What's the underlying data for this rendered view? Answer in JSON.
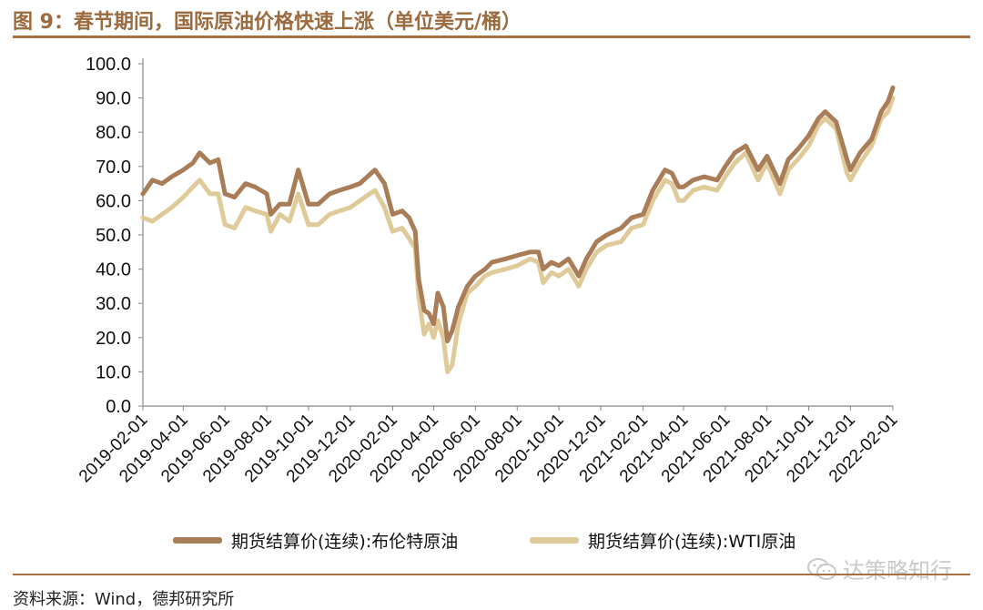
{
  "header": {
    "title": "图 9：春节期间，国际原油价格快速上涨（单位美元/桶）"
  },
  "footer": {
    "source": "资料来源：Wind，德邦研究所",
    "watermark": "达策略知行",
    "watermark_icon": "wechat-icon"
  },
  "colors": {
    "brent": "#a87d58",
    "wti": "#dfcb9a",
    "accent": "#a57140"
  },
  "chart_data": {
    "type": "line",
    "title": "",
    "xlabel": "",
    "ylabel": "",
    "ylim": [
      0,
      100
    ],
    "yticks": [
      "0.0",
      "10.0",
      "20.0",
      "30.0",
      "40.0",
      "50.0",
      "60.0",
      "70.0",
      "80.0",
      "90.0",
      "100.0"
    ],
    "xlim": [
      "2019-02-01",
      "2022-02-01"
    ],
    "xticks": [
      "2019-02-01",
      "2019-04-01",
      "2019-06-01",
      "2019-08-01",
      "2019-10-01",
      "2019-12-01",
      "2020-02-01",
      "2020-04-01",
      "2020-06-01",
      "2020-08-01",
      "2020-10-01",
      "2020-12-01",
      "2021-02-01",
      "2021-04-01",
      "2021-06-01",
      "2021-08-01",
      "2021-10-01",
      "2021-12-01",
      "2022-02-01"
    ],
    "grid": false,
    "legend_position": "bottom",
    "series": [
      {
        "name": "期货结算价(连续):布伦特原油",
        "points": [
          [
            "2019-02-01",
            62
          ],
          [
            "2019-02-15",
            66
          ],
          [
            "2019-03-01",
            65
          ],
          [
            "2019-03-15",
            67
          ],
          [
            "2019-04-01",
            69
          ],
          [
            "2019-04-15",
            71
          ],
          [
            "2019-04-25",
            74
          ],
          [
            "2019-05-10",
            71
          ],
          [
            "2019-05-22",
            72
          ],
          [
            "2019-06-01",
            62
          ],
          [
            "2019-06-15",
            61
          ],
          [
            "2019-07-01",
            65
          ],
          [
            "2019-07-15",
            64
          ],
          [
            "2019-08-01",
            62
          ],
          [
            "2019-08-07",
            56
          ],
          [
            "2019-08-20",
            59
          ],
          [
            "2019-09-03",
            59
          ],
          [
            "2019-09-16",
            69
          ],
          [
            "2019-10-01",
            59
          ],
          [
            "2019-10-15",
            59
          ],
          [
            "2019-11-01",
            62
          ],
          [
            "2019-11-15",
            63
          ],
          [
            "2019-12-01",
            64
          ],
          [
            "2019-12-15",
            65
          ],
          [
            "2020-01-06",
            69
          ],
          [
            "2020-01-20",
            65
          ],
          [
            "2020-02-01",
            56
          ],
          [
            "2020-02-15",
            57
          ],
          [
            "2020-02-25",
            55
          ],
          [
            "2020-03-05",
            51
          ],
          [
            "2020-03-10",
            37
          ],
          [
            "2020-03-18",
            28
          ],
          [
            "2020-03-25",
            27
          ],
          [
            "2020-04-01",
            24
          ],
          [
            "2020-04-07",
            33
          ],
          [
            "2020-04-15",
            29
          ],
          [
            "2020-04-21",
            19
          ],
          [
            "2020-04-28",
            22
          ],
          [
            "2020-05-07",
            29
          ],
          [
            "2020-05-20",
            35
          ],
          [
            "2020-06-01",
            38
          ],
          [
            "2020-06-15",
            40
          ],
          [
            "2020-06-25",
            42
          ],
          [
            "2020-07-15",
            43
          ],
          [
            "2020-08-01",
            44
          ],
          [
            "2020-08-20",
            45
          ],
          [
            "2020-09-01",
            45
          ],
          [
            "2020-09-08",
            40
          ],
          [
            "2020-09-20",
            42
          ],
          [
            "2020-10-01",
            41
          ],
          [
            "2020-10-15",
            43
          ],
          [
            "2020-10-30",
            38
          ],
          [
            "2020-11-10",
            43
          ],
          [
            "2020-11-25",
            48
          ],
          [
            "2020-12-10",
            50
          ],
          [
            "2020-12-31",
            52
          ],
          [
            "2021-01-15",
            55
          ],
          [
            "2021-02-01",
            56
          ],
          [
            "2021-02-15",
            63
          ],
          [
            "2021-03-05",
            69
          ],
          [
            "2021-03-15",
            68
          ],
          [
            "2021-03-25",
            64
          ],
          [
            "2021-04-01",
            64
          ],
          [
            "2021-04-15",
            66
          ],
          [
            "2021-05-01",
            67
          ],
          [
            "2021-05-20",
            66
          ],
          [
            "2021-06-01",
            70
          ],
          [
            "2021-06-15",
            74
          ],
          [
            "2021-07-01",
            76
          ],
          [
            "2021-07-19",
            69
          ],
          [
            "2021-08-01",
            73
          ],
          [
            "2021-08-20",
            65
          ],
          [
            "2021-09-01",
            72
          ],
          [
            "2021-09-15",
            75
          ],
          [
            "2021-10-01",
            79
          ],
          [
            "2021-10-15",
            84
          ],
          [
            "2021-10-25",
            86
          ],
          [
            "2021-11-10",
            83
          ],
          [
            "2021-11-26",
            72
          ],
          [
            "2021-12-01",
            69
          ],
          [
            "2021-12-15",
            74
          ],
          [
            "2022-01-01",
            78
          ],
          [
            "2022-01-15",
            86
          ],
          [
            "2022-01-25",
            89
          ],
          [
            "2022-02-01",
            93
          ]
        ]
      },
      {
        "name": "期货结算价(连续):WTI原油",
        "points": [
          [
            "2019-02-01",
            55
          ],
          [
            "2019-02-15",
            54
          ],
          [
            "2019-03-01",
            56
          ],
          [
            "2019-03-15",
            58
          ],
          [
            "2019-04-01",
            61
          ],
          [
            "2019-04-15",
            64
          ],
          [
            "2019-04-25",
            66
          ],
          [
            "2019-05-10",
            62
          ],
          [
            "2019-05-22",
            62
          ],
          [
            "2019-06-01",
            53
          ],
          [
            "2019-06-15",
            52
          ],
          [
            "2019-07-01",
            58
          ],
          [
            "2019-07-15",
            57
          ],
          [
            "2019-08-01",
            56
          ],
          [
            "2019-08-07",
            51
          ],
          [
            "2019-08-20",
            56
          ],
          [
            "2019-09-03",
            54
          ],
          [
            "2019-09-16",
            62
          ],
          [
            "2019-10-01",
            53
          ],
          [
            "2019-10-15",
            53
          ],
          [
            "2019-11-01",
            56
          ],
          [
            "2019-11-15",
            57
          ],
          [
            "2019-12-01",
            58
          ],
          [
            "2019-12-15",
            60
          ],
          [
            "2020-01-06",
            63
          ],
          [
            "2020-01-20",
            58
          ],
          [
            "2020-02-01",
            51
          ],
          [
            "2020-02-15",
            52
          ],
          [
            "2020-02-25",
            49
          ],
          [
            "2020-03-05",
            46
          ],
          [
            "2020-03-10",
            32
          ],
          [
            "2020-03-18",
            21
          ],
          [
            "2020-03-25",
            24
          ],
          [
            "2020-04-01",
            20
          ],
          [
            "2020-04-07",
            25
          ],
          [
            "2020-04-15",
            20
          ],
          [
            "2020-04-21",
            10
          ],
          [
            "2020-04-28",
            12
          ],
          [
            "2020-05-07",
            24
          ],
          [
            "2020-05-20",
            33
          ],
          [
            "2020-06-01",
            35
          ],
          [
            "2020-06-15",
            38
          ],
          [
            "2020-06-25",
            39
          ],
          [
            "2020-07-15",
            40
          ],
          [
            "2020-08-01",
            41
          ],
          [
            "2020-08-20",
            43
          ],
          [
            "2020-09-01",
            42
          ],
          [
            "2020-09-08",
            36
          ],
          [
            "2020-09-20",
            39
          ],
          [
            "2020-10-01",
            38
          ],
          [
            "2020-10-15",
            40
          ],
          [
            "2020-10-30",
            35
          ],
          [
            "2020-11-10",
            40
          ],
          [
            "2020-11-25",
            45
          ],
          [
            "2020-12-10",
            47
          ],
          [
            "2020-12-31",
            48
          ],
          [
            "2021-01-15",
            52
          ],
          [
            "2021-02-01",
            53
          ],
          [
            "2021-02-15",
            60
          ],
          [
            "2021-03-05",
            66
          ],
          [
            "2021-03-15",
            65
          ],
          [
            "2021-03-25",
            60
          ],
          [
            "2021-04-01",
            60
          ],
          [
            "2021-04-15",
            63
          ],
          [
            "2021-05-01",
            64
          ],
          [
            "2021-05-20",
            63
          ],
          [
            "2021-06-01",
            67
          ],
          [
            "2021-06-15",
            71
          ],
          [
            "2021-07-01",
            74
          ],
          [
            "2021-07-19",
            66
          ],
          [
            "2021-08-01",
            71
          ],
          [
            "2021-08-20",
            62
          ],
          [
            "2021-09-01",
            69
          ],
          [
            "2021-09-15",
            72
          ],
          [
            "2021-10-01",
            76
          ],
          [
            "2021-10-15",
            82
          ],
          [
            "2021-10-25",
            84
          ],
          [
            "2021-11-10",
            81
          ],
          [
            "2021-11-26",
            68
          ],
          [
            "2021-12-01",
            66
          ],
          [
            "2021-12-15",
            71
          ],
          [
            "2022-01-01",
            76
          ],
          [
            "2022-01-15",
            84
          ],
          [
            "2022-01-25",
            86
          ],
          [
            "2022-02-01",
            90
          ]
        ]
      }
    ]
  }
}
